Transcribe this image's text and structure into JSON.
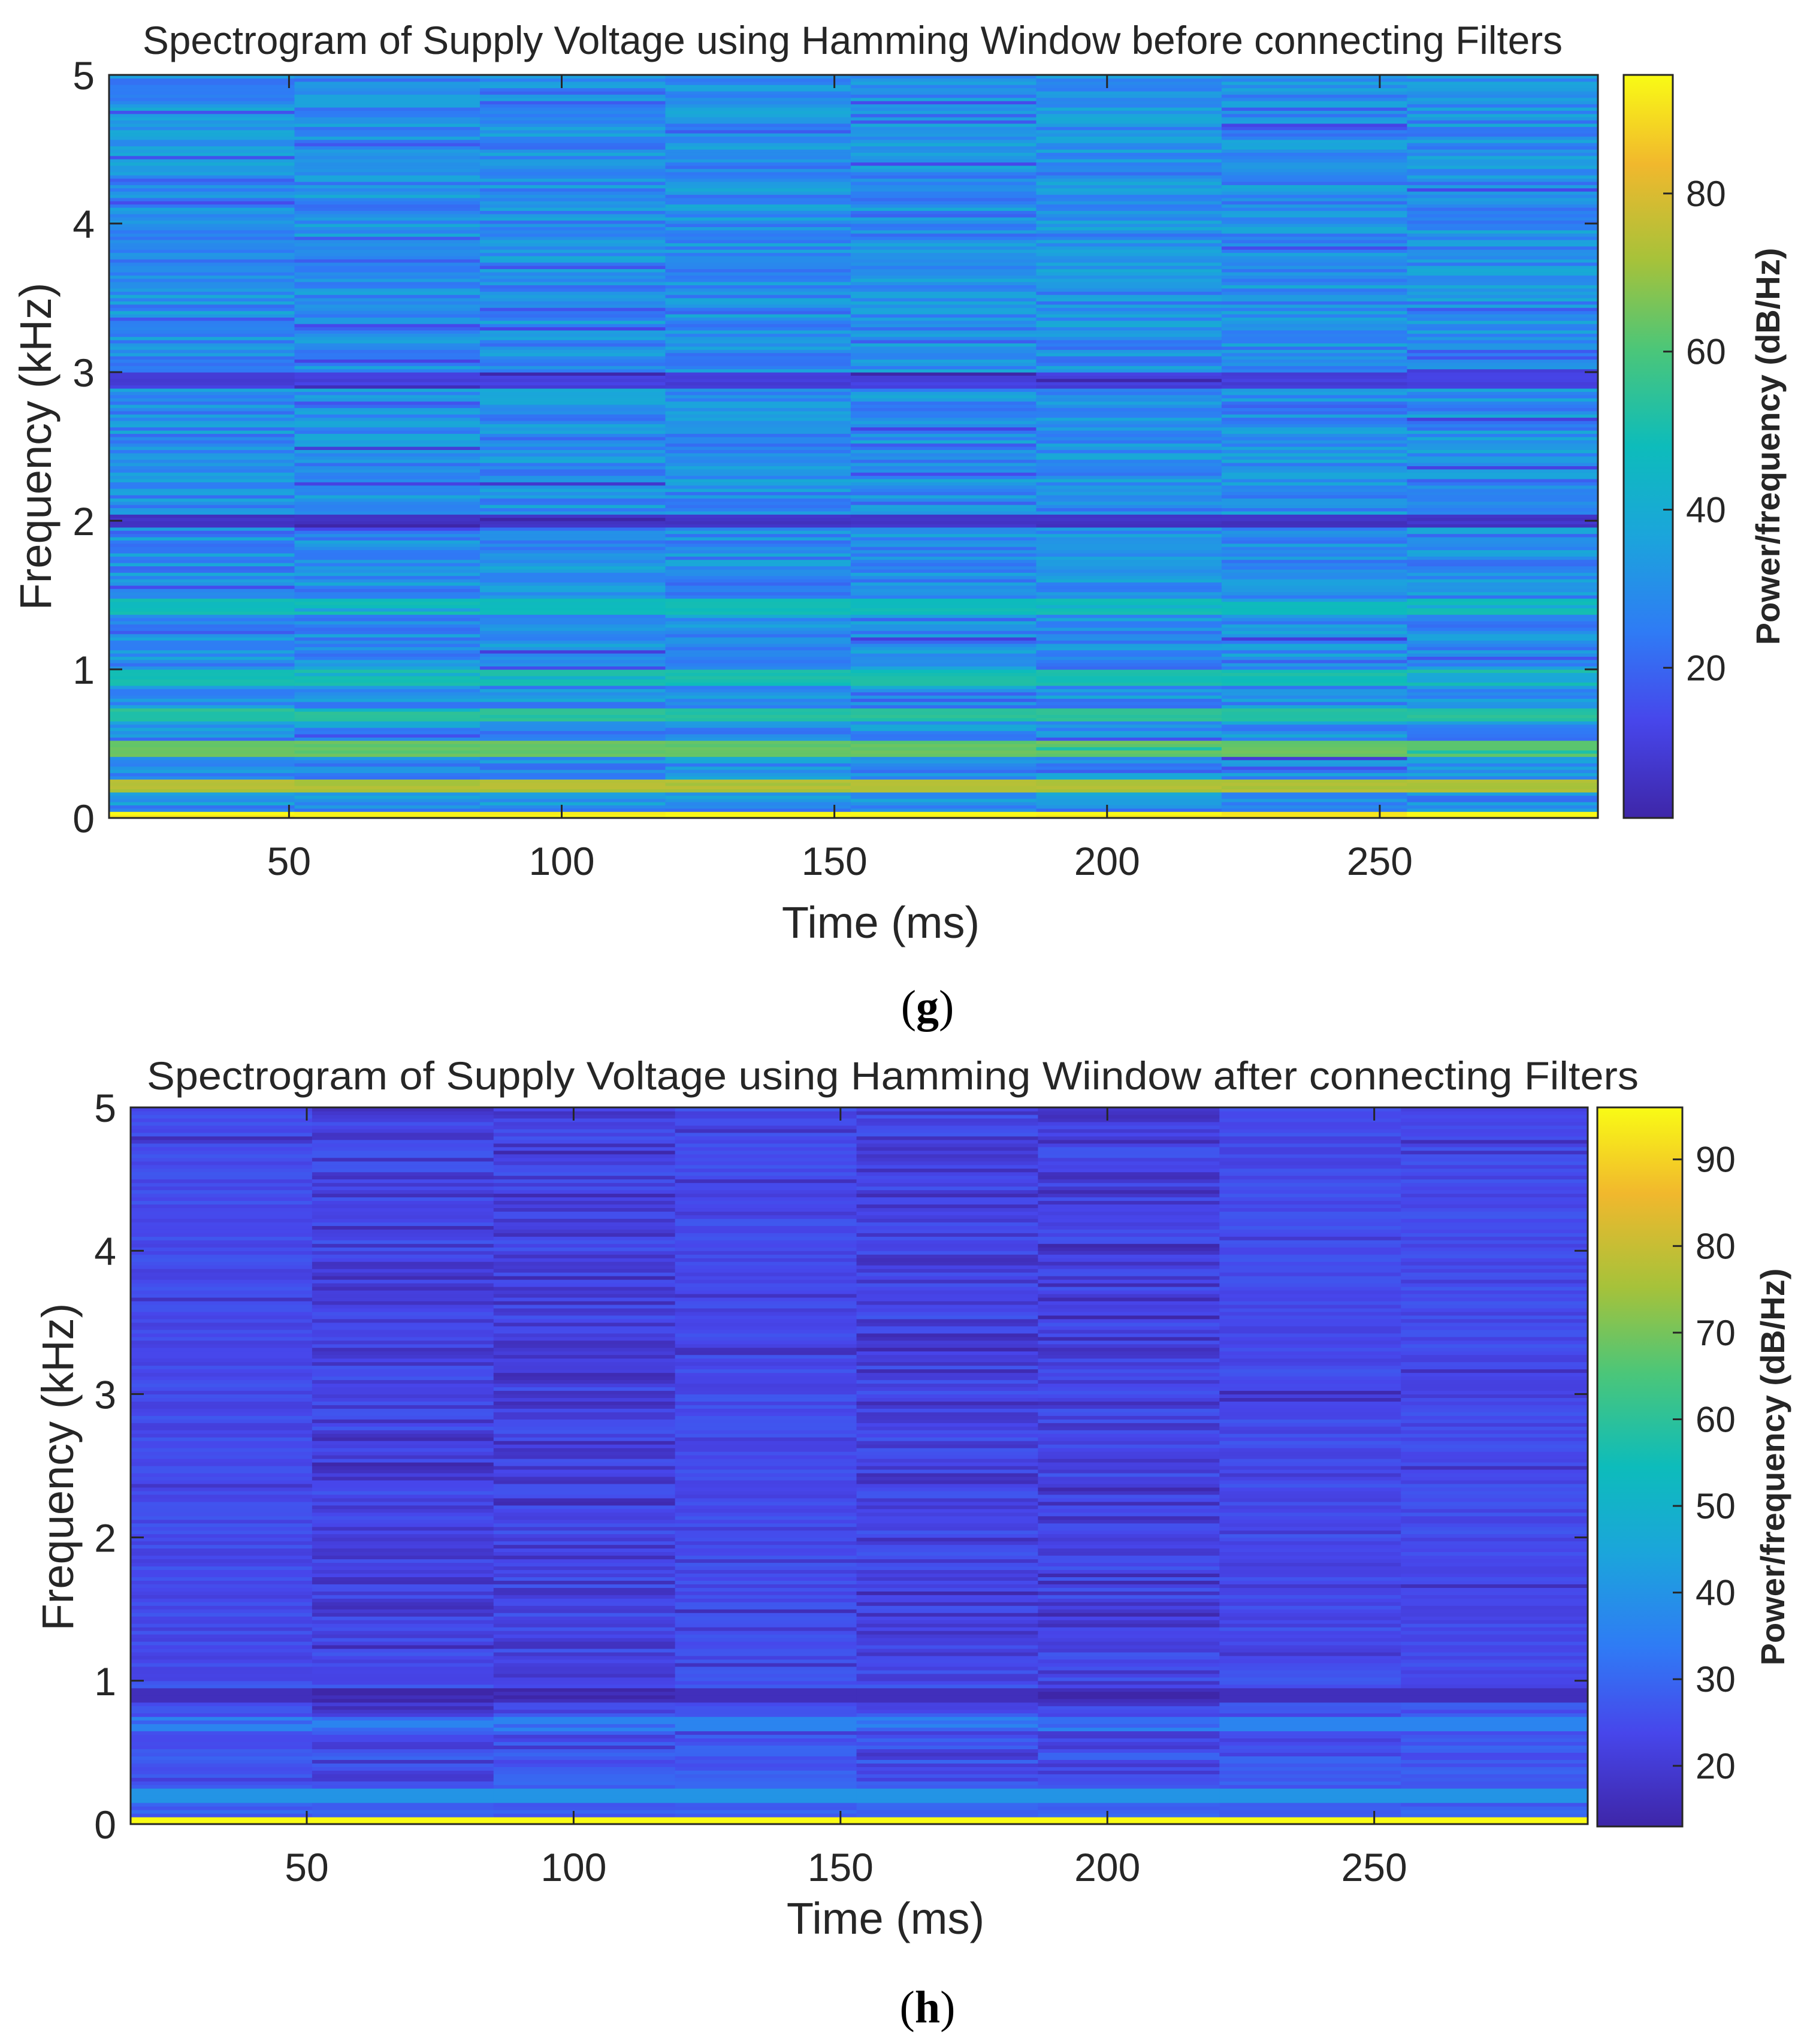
{
  "chart_data": [
    {
      "type": "heatmap",
      "title": "Spectrogram of Supply Voltage using Hamming Window before connecting Filters",
      "xlabel": "Time (ms)",
      "ylabel": "Frequency (kHz)",
      "xlim": [
        17,
        290
      ],
      "ylim": [
        0,
        5
      ],
      "x_ticks": [
        "50",
        "100",
        "150",
        "200",
        "250"
      ],
      "y_ticks": [
        "0",
        "1",
        "2",
        "3",
        "4",
        "5"
      ],
      "time_segment_edges_ms": [
        17,
        51,
        85,
        119,
        153,
        187,
        221,
        255,
        290
      ],
      "colorbar": {
        "label": "Power/frequency (dB/Hz)",
        "range": [
          1,
          95
        ],
        "ticks": [
          "20",
          "40",
          "60",
          "80"
        ]
      },
      "base_level_db": 30,
      "notable_bands": [
        {
          "freq_khz": 0.02,
          "level_db": 95
        },
        {
          "freq_khz": 0.22,
          "level_db": 75
        },
        {
          "freq_khz": 0.47,
          "level_db": 65
        },
        {
          "freq_khz": 0.7,
          "level_db": 55
        },
        {
          "freq_khz": 0.95,
          "level_db": 52
        },
        {
          "freq_khz": 1.42,
          "level_db": 50
        },
        {
          "freq_khz": 2.0,
          "level_db": 8
        },
        {
          "freq_khz": 2.95,
          "level_db": 12
        }
      ],
      "caption": "g"
    },
    {
      "type": "heatmap",
      "title": "Spectrogram of Supply Voltage using Hamming Wiindow after connecting Filters",
      "xlabel": "Time (ms)",
      "ylabel": "Frequency (kHz)",
      "xlim": [
        17,
        290
      ],
      "ylim": [
        0,
        5
      ],
      "x_ticks": [
        "50",
        "100",
        "150",
        "200",
        "250"
      ],
      "y_ticks": [
        "0",
        "1",
        "2",
        "3",
        "4",
        "5"
      ],
      "time_segment_edges_ms": [
        17,
        51,
        85,
        119,
        153,
        187,
        221,
        255,
        290
      ],
      "colorbar": {
        "label": "Power/frequency (dB/Hz)",
        "range": [
          13,
          96
        ],
        "ticks": [
          "20",
          "30",
          "40",
          "50",
          "60",
          "70",
          "80",
          "90"
        ]
      },
      "base_level_db": 24,
      "notable_bands": [
        {
          "freq_khz": 0.03,
          "level_db": 96
        },
        {
          "freq_khz": 0.2,
          "level_db": 40
        },
        {
          "freq_khz": 0.7,
          "level_db": 36
        },
        {
          "freq_khz": 0.9,
          "level_db": 16
        }
      ],
      "caption": "h"
    }
  ],
  "captions": [
    {
      "open": "(",
      "letter": "g",
      "close": ")"
    },
    {
      "open": "(",
      "letter": "h",
      "close": ")"
    }
  ]
}
